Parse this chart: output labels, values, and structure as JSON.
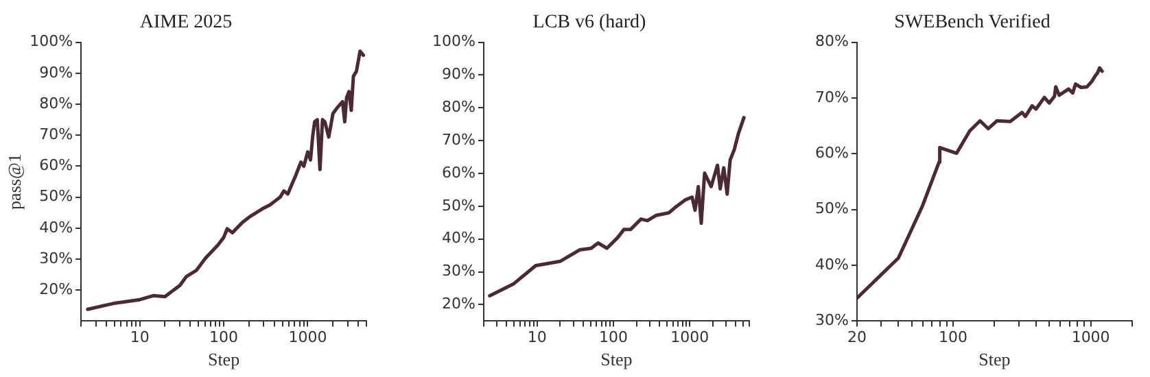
{
  "chart_data": [
    {
      "type": "line",
      "title": "AIME 2025",
      "xlabel": "Step",
      "ylabel": "pass@1",
      "log": "x",
      "xlim": [
        2,
        5000
      ],
      "xticks": [
        {
          "value": 2,
          "label": null
        },
        {
          "value": 3,
          "label": null
        },
        {
          "value": 4,
          "label": null
        },
        {
          "value": 5,
          "label": null
        },
        {
          "value": 6,
          "label": null
        },
        {
          "value": 7,
          "label": null
        },
        {
          "value": 8,
          "label": null
        },
        {
          "value": 9,
          "label": null
        },
        10,
        {
          "value": 20,
          "label": null
        },
        {
          "value": 30,
          "label": null
        },
        {
          "value": 40,
          "label": null
        },
        {
          "value": 50,
          "label": null
        },
        {
          "value": 60,
          "label": null
        },
        {
          "value": 70,
          "label": null
        },
        {
          "value": 80,
          "label": null
        },
        {
          "value": 90,
          "label": null
        },
        100,
        {
          "value": 200,
          "label": null
        },
        {
          "value": 300,
          "label": null
        },
        {
          "value": 400,
          "label": null
        },
        {
          "value": 500,
          "label": null
        },
        {
          "value": 600,
          "label": null
        },
        {
          "value": 700,
          "label": null
        },
        {
          "value": 800,
          "label": null
        },
        {
          "value": 900,
          "label": null
        },
        1000,
        {
          "value": 2000,
          "label": null
        },
        {
          "value": 3000,
          "label": null
        },
        {
          "value": 4000,
          "label": null
        },
        {
          "value": 5000,
          "label": null
        }
      ],
      "ylim": [
        10,
        100
      ],
      "yticks": [
        {
          "value": 20,
          "label": "20%"
        },
        {
          "value": 30,
          "label": "30%"
        },
        {
          "value": 40,
          "label": "40%"
        },
        {
          "value": 50,
          "label": "50%"
        },
        {
          "value": 60,
          "label": "60%"
        },
        {
          "value": 70,
          "label": "70%"
        },
        {
          "value": 80,
          "label": "80%"
        },
        {
          "value": 90,
          "label": "90%"
        },
        {
          "value": 100,
          "label": "100%"
        }
      ],
      "x": [
        2.4,
        5.1,
        10,
        14.5,
        20,
        30,
        36,
        47,
        61,
        85,
        100,
        110,
        127,
        166,
        200,
        245,
        300,
        355,
        420,
        470,
        520,
        580,
        645,
        720,
        830,
        900,
        1000,
        1080,
        1150,
        1210,
        1300,
        1400,
        1500,
        1600,
        1780,
        2000,
        2300,
        2600,
        2760,
        2900,
        3100,
        3300,
        3500,
        3800,
        4200,
        4600
      ],
      "series": [
        {
          "color": "#4a2a33",
          "values": [
            13.8,
            15.8,
            16.9,
            18.2,
            17.9,
            21.5,
            24.4,
            26.3,
            30.4,
            34.5,
            37,
            39.8,
            38.5,
            41.8,
            43.5,
            45,
            46.5,
            47.5,
            49,
            50,
            52,
            51,
            54,
            57,
            61.3,
            60,
            64.6,
            62,
            70,
            74.3,
            75,
            58.9,
            75,
            74.3,
            69.4,
            77,
            79.2,
            80.8,
            74.3,
            82,
            84.1,
            78,
            89,
            90.6,
            97.1,
            95.8
          ]
        }
      ]
    },
    {
      "type": "line",
      "title": "LCB v6 (hard)",
      "xlabel": "Step",
      "log": "x",
      "xlim": [
        2,
        6000
      ],
      "xticks": [
        {
          "value": 2,
          "label": null
        },
        {
          "value": 3,
          "label": null
        },
        {
          "value": 4,
          "label": null
        },
        {
          "value": 5,
          "label": null
        },
        {
          "value": 6,
          "label": null
        },
        {
          "value": 7,
          "label": null
        },
        {
          "value": 8,
          "label": null
        },
        {
          "value": 9,
          "label": null
        },
        10,
        {
          "value": 20,
          "label": null
        },
        {
          "value": 30,
          "label": null
        },
        {
          "value": 40,
          "label": null
        },
        {
          "value": 50,
          "label": null
        },
        {
          "value": 60,
          "label": null
        },
        {
          "value": 70,
          "label": null
        },
        {
          "value": 80,
          "label": null
        },
        {
          "value": 90,
          "label": null
        },
        100,
        {
          "value": 200,
          "label": null
        },
        {
          "value": 300,
          "label": null
        },
        {
          "value": 400,
          "label": null
        },
        {
          "value": 500,
          "label": null
        },
        {
          "value": 600,
          "label": null
        },
        {
          "value": 700,
          "label": null
        },
        {
          "value": 800,
          "label": null
        },
        {
          "value": 900,
          "label": null
        },
        1000,
        {
          "value": 2000,
          "label": null
        },
        {
          "value": 3000,
          "label": null
        },
        {
          "value": 4000,
          "label": null
        },
        {
          "value": 5000,
          "label": null
        },
        {
          "value": 6000,
          "label": null
        }
      ],
      "ylim": [
        15,
        100
      ],
      "yticks": [
        {
          "value": 20,
          "label": "20%"
        },
        {
          "value": 30,
          "label": "30%"
        },
        {
          "value": 40,
          "label": "40%"
        },
        {
          "value": 50,
          "label": "50%"
        },
        {
          "value": 60,
          "label": "60%"
        },
        {
          "value": 70,
          "label": "70%"
        },
        {
          "value": 80,
          "label": "80%"
        },
        {
          "value": 90,
          "label": "90%"
        },
        {
          "value": 100,
          "label": "100%"
        }
      ],
      "x": [
        2.4,
        4.9,
        9.6,
        20,
        36,
        51,
        63,
        82,
        114,
        137,
        167,
        230,
        278,
        360,
        530,
        640,
        880,
        1070,
        1170,
        1290,
        1410,
        1560,
        1900,
        2300,
        2500,
        2780,
        3080,
        3370,
        3820,
        4330,
        5100
      ],
      "series": [
        {
          "color": "#4a2a33",
          "values": [
            22.7,
            26.3,
            31.9,
            33.2,
            36.7,
            37.2,
            38.8,
            37.2,
            40.5,
            42.9,
            42.9,
            46.1,
            45.6,
            47.2,
            48,
            49.6,
            52,
            52.8,
            48.8,
            56,
            44.8,
            60.1,
            56,
            62.5,
            55.3,
            61.7,
            53.7,
            64.1,
            67.3,
            72.2,
            77
          ]
        }
      ]
    },
    {
      "type": "line",
      "title": "SWEBench Verified",
      "xlabel": "Step",
      "log": "x",
      "xlim": [
        20,
        2000
      ],
      "xticks": [
        20,
        {
          "value": 30,
          "label": null
        },
        {
          "value": 40,
          "label": null
        },
        {
          "value": 50,
          "label": null
        },
        {
          "value": 60,
          "label": null
        },
        {
          "value": 70,
          "label": null
        },
        {
          "value": 80,
          "label": null
        },
        {
          "value": 90,
          "label": null
        },
        100,
        {
          "value": 200,
          "label": null
        },
        {
          "value": 300,
          "label": null
        },
        {
          "value": 400,
          "label": null
        },
        {
          "value": 500,
          "label": null
        },
        {
          "value": 600,
          "label": null
        },
        {
          "value": 700,
          "label": null
        },
        {
          "value": 800,
          "label": null
        },
        {
          "value": 900,
          "label": null
        },
        1000,
        {
          "value": 2000,
          "label": null
        }
      ],
      "ylim": [
        30,
        80
      ],
      "yticks": [
        {
          "value": 30,
          "label": "30%"
        },
        {
          "value": 40,
          "label": "40%"
        },
        {
          "value": 50,
          "label": "50%"
        },
        {
          "value": 60,
          "label": "60%"
        },
        {
          "value": 70,
          "label": "70%"
        },
        {
          "value": 80,
          "label": "80%"
        }
      ],
      "x": [
        20,
        40,
        60,
        79,
        80,
        106,
        132,
        157,
        180,
        208,
        260,
        317,
        335,
        375,
        400,
        460,
        500,
        545,
        557,
        590,
        690,
        740,
        775,
        850,
        940,
        1020,
        1080,
        1120,
        1160,
        1210
      ],
      "series": [
        {
          "color": "#4a2a33",
          "values": [
            34.1,
            41.3,
            50.7,
            58.5,
            61.1,
            60.1,
            64.1,
            65.9,
            64.5,
            65.9,
            65.8,
            67.4,
            66.7,
            68.6,
            68,
            70.1,
            69.1,
            70.3,
            72,
            70.5,
            71.6,
            70.9,
            72.5,
            71.9,
            72,
            73,
            74,
            74.5,
            75.4,
            74.8
          ]
        }
      ]
    }
  ]
}
